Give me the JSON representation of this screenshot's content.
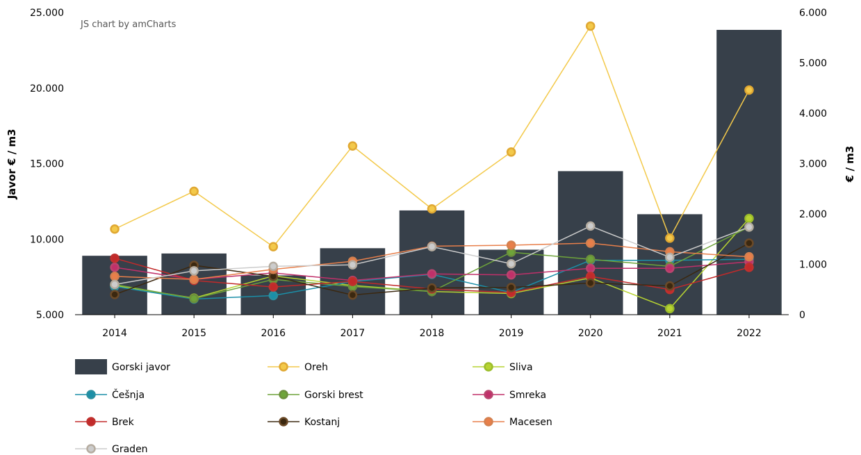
{
  "credit": "JS chart by amCharts",
  "chart_data": {
    "type": "bar",
    "categories": [
      "2014",
      "2015",
      "2016",
      "2017",
      "2018",
      "2019",
      "2020",
      "2021",
      "2022"
    ],
    "left_axis": {
      "title": "Javor € / m3",
      "range": [
        5000,
        25000
      ],
      "ticks": [
        "5.000",
        "10.000",
        "15.000",
        "20.000",
        "25.000"
      ]
    },
    "right_axis": {
      "title": "€ / m3",
      "range": [
        0,
        6000
      ],
      "ticks": [
        "0",
        "1.000",
        "2.000",
        "3.000",
        "4.000",
        "5.000",
        "6.000"
      ]
    },
    "grid": false,
    "legend_position": "bottom",
    "series": [
      {
        "name": "Gorski javor",
        "type": "bar",
        "axis": "left",
        "color": "#37404a",
        "values": [
          8900,
          9050,
          7600,
          9400,
          11900,
          9300,
          14500,
          11650,
          23850
        ]
      },
      {
        "name": "Oreh",
        "type": "line",
        "axis": "right",
        "color": "#f3c94a",
        "marker": "#e0a832",
        "values": [
          1700,
          2450,
          1350,
          3350,
          2100,
          3230,
          5730,
          1520,
          4460
        ]
      },
      {
        "name": "Sliva",
        "type": "line",
        "axis": "right",
        "color": "#b7d332",
        "marker": "#9bbd2a",
        "values": [
          580,
          330,
          770,
          580,
          460,
          420,
          730,
          120,
          1910
        ]
      },
      {
        "name": "Češnja",
        "type": "line",
        "axis": "right",
        "color": "#1b8fa8",
        "marker": "#2a8fa0",
        "values": [
          560,
          310,
          380,
          660,
          800,
          440,
          1080,
          1080,
          1100
        ]
      },
      {
        "name": "Gorski brest",
        "type": "line",
        "axis": "right",
        "color": "#6ea43a",
        "marker": "#6c8f3c",
        "values": [
          600,
          320,
          700,
          560,
          460,
          1240,
          1100,
          960,
          1740
        ]
      },
      {
        "name": "Smreka",
        "type": "line",
        "axis": "right",
        "color": "#c0306a",
        "marker": "#b8456e",
        "values": [
          940,
          700,
          830,
          680,
          810,
          790,
          920,
          920,
          1050
        ]
      },
      {
        "name": "Brek",
        "type": "line",
        "axis": "right",
        "color": "#c22a2a",
        "marker": "#c0312e",
        "values": [
          1120,
          680,
          550,
          660,
          510,
          440,
          760,
          500,
          940
        ]
      },
      {
        "name": "Kostanj",
        "type": "line",
        "axis": "right",
        "color": "#3b2810",
        "marker": "#6b4a28",
        "values": [
          400,
          980,
          760,
          390,
          530,
          540,
          630,
          570,
          1420
        ]
      },
      {
        "name": "Macesen",
        "type": "line",
        "axis": "right",
        "color": "#e87f4a",
        "marker": "#d4804f",
        "values": [
          760,
          700,
          900,
          1060,
          1360,
          1380,
          1420,
          1250,
          1150
        ]
      },
      {
        "name": "Graden",
        "type": "line",
        "axis": "right",
        "color": "#cccccc",
        "marker": "#b5aca0",
        "values": [
          600,
          870,
          960,
          990,
          1350,
          1010,
          1760,
          1140,
          1740
        ]
      }
    ]
  }
}
